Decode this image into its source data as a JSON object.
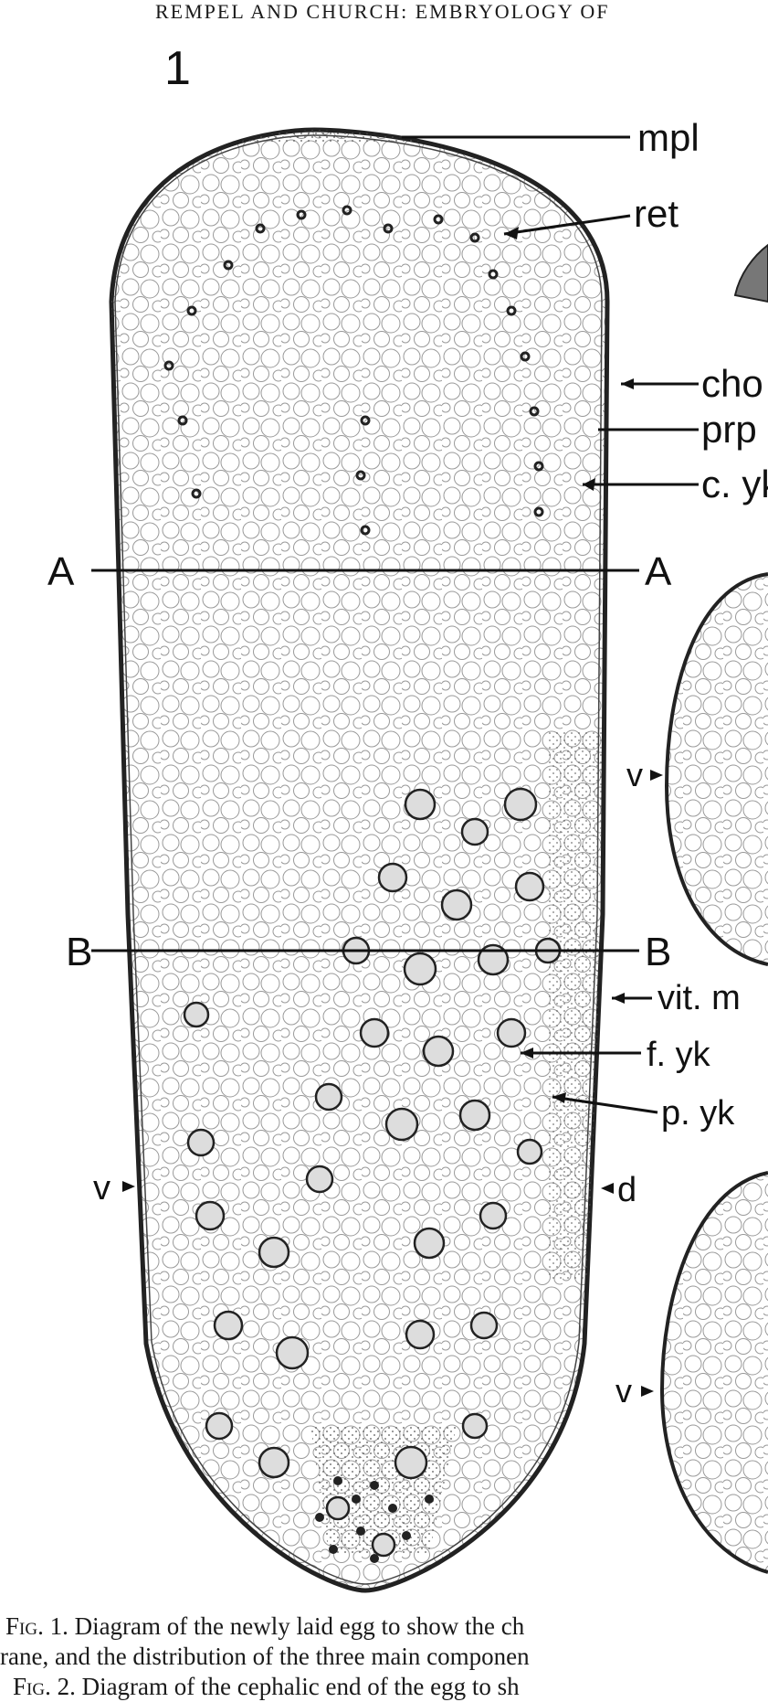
{
  "header": {
    "running_head": "REMPEL AND CHURCH: EMBRYOLOGY OF"
  },
  "figure": {
    "plate_number": "1",
    "labels": {
      "mpl": "mpl",
      "ret": "ret",
      "cho": "cho",
      "prp": "prp",
      "cyk": "c. yk",
      "a_left": "A",
      "a_right": "A",
      "b_left": "B",
      "b_right": "B",
      "vitm": "vit. m",
      "fyk": "f. yk",
      "pyk": "p. yk",
      "v_left": "v",
      "d": "d",
      "v_right1": "v",
      "v_right2": "v"
    }
  },
  "caption": {
    "fig1_prefix": "Fig. 1.",
    "fig1_text": " Diagram of the newly laid egg to show the ch",
    "line2": "rane, and the distribution of the three main componen",
    "fig2_prefix": "Fig. 2.",
    "fig2_text": " Diagram of the cephalic end of the egg to sh"
  }
}
